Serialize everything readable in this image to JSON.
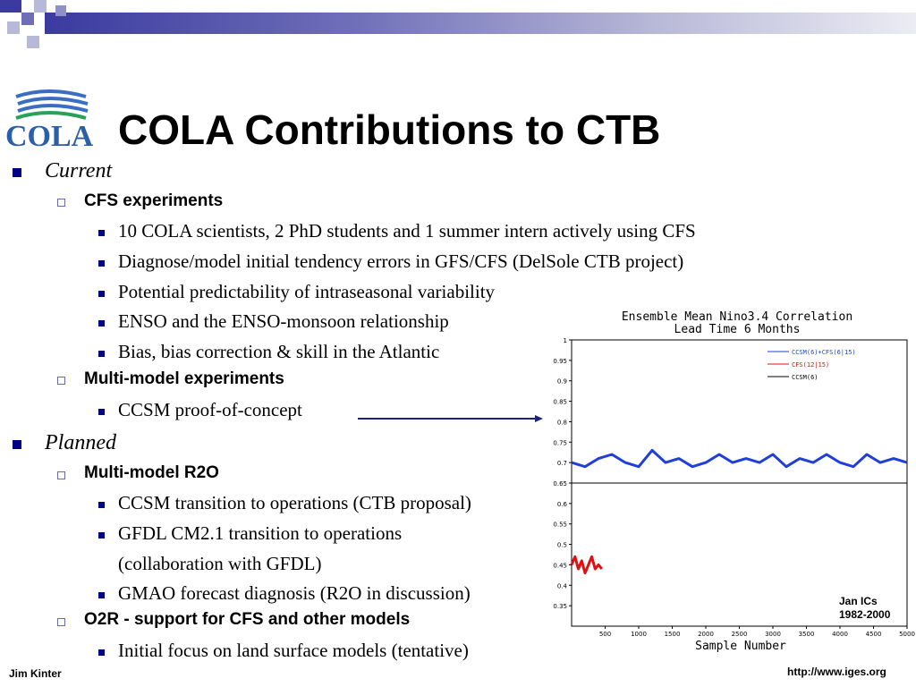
{
  "slide": {
    "title": "COLA Contributions to CTB",
    "logo_text": "COLA",
    "footer_left": "Jim Kinter",
    "footer_right": "http://www.iges.org",
    "arrow_color": "#1a237e"
  },
  "outline": {
    "current": {
      "label": "Current",
      "groups": [
        {
          "label": "CFS experiments",
          "items": [
            "10 COLA scientists, 2 PhD students and 1 summer intern actively using CFS",
            "Diagnose/model initial tendency errors in GFS/CFS (DelSole CTB project)",
            "Potential predictability of intraseasonal variability",
            "ENSO and the ENSO-monsoon relationship",
            "Bias, bias correction & skill in the Atlantic"
          ]
        },
        {
          "label": "Multi-model experiments",
          "items": [
            "CCSM proof-of-concept"
          ]
        }
      ]
    },
    "planned": {
      "label": "Planned",
      "groups": [
        {
          "label": "Multi-model R2O",
          "items": [
            "CCSM transition to operations (CTB proposal)",
            "GFDL CM2.1 transition to operations",
            "(collaboration with GFDL)",
            "GMAO forecast diagnosis (R2O in discussion)"
          ]
        },
        {
          "label": "O2R - support for CFS and other models",
          "items": [
            "Initial focus on land surface models (tentative)"
          ]
        }
      ]
    }
  },
  "chart_data": {
    "type": "line",
    "title": "Ensemble Mean Nino3.4 Correlation",
    "subtitle": "Lead Time 6 Months",
    "xlabel": "Sample Number",
    "ylabel": "",
    "xlim": [
      0,
      5000
    ],
    "ylim": [
      0.3,
      1.0
    ],
    "x_ticks": [
      500,
      1000,
      1500,
      2000,
      2500,
      3000,
      3500,
      4000,
      4500,
      5000
    ],
    "y_ticks": [
      0.35,
      0.4,
      0.45,
      0.5,
      0.55,
      0.6,
      0.65,
      0.7,
      0.75,
      0.8,
      0.85,
      0.9,
      0.95,
      1
    ],
    "x_tick_labels": [
      "500",
      "1000",
      "1500",
      "2000",
      "2500",
      "3000",
      "3500",
      "4000",
      "4500",
      "5000"
    ],
    "y_tick_labels": [
      "0.35",
      "0.4",
      "0.45",
      "0.5",
      "0.55",
      "0.6",
      "0.65",
      "0.7",
      "0.75",
      "0.8",
      "0.85",
      "0.9",
      "0.95",
      "1"
    ],
    "hline": 0.65,
    "grid": false,
    "legend_position": "top-right",
    "annotation": "Jan ICs\n1982-2000",
    "series": [
      {
        "name": "CCSM(6)+CFS(6|15)",
        "color": "#1f3fd8",
        "x": [
          0,
          200,
          400,
          600,
          800,
          1000,
          1200,
          1400,
          1600,
          1800,
          2000,
          2200,
          2400,
          2600,
          2800,
          3000,
          3200,
          3400,
          3600,
          3800,
          4000,
          4200,
          4400,
          4600,
          4800,
          5000
        ],
        "y": [
          0.7,
          0.69,
          0.71,
          0.72,
          0.7,
          0.69,
          0.73,
          0.7,
          0.71,
          0.69,
          0.7,
          0.72,
          0.7,
          0.71,
          0.7,
          0.72,
          0.69,
          0.71,
          0.7,
          0.72,
          0.7,
          0.69,
          0.72,
          0.7,
          0.71,
          0.7
        ]
      },
      {
        "name": "CFS(12|15)",
        "color": "#e01010",
        "x": [
          0,
          50,
          100,
          150,
          200,
          250,
          300,
          350,
          400,
          450
        ],
        "y": [
          0.45,
          0.47,
          0.44,
          0.46,
          0.43,
          0.45,
          0.47,
          0.44,
          0.45,
          0.44
        ]
      },
      {
        "name": "CCSM(6)",
        "color": "#000000",
        "x": [],
        "y": []
      }
    ]
  }
}
